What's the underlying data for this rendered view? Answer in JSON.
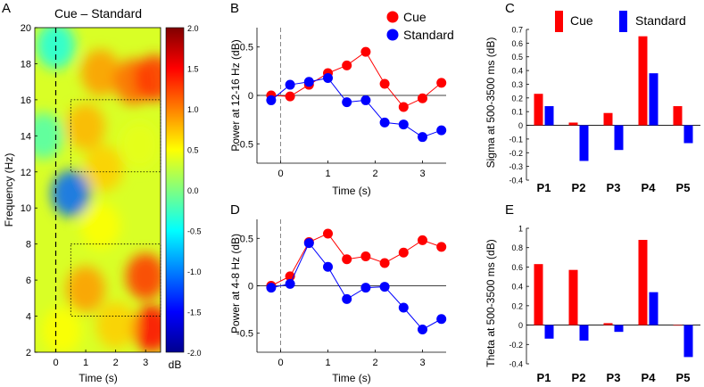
{
  "colors": {
    "cue": "#ff0000",
    "standard": "#0000ff",
    "P1": "#22bbee",
    "P2": "#1aaa8a",
    "P3": "#e06a1e",
    "P4": "#e070b8",
    "P5": "#000000"
  },
  "chart_data": [
    {
      "panel": "A",
      "type": "heatmap",
      "title": "Cue – Standard",
      "xlabel": "Time (s)",
      "ylabel": "Frequency (Hz)",
      "xlim": [
        -0.7,
        3.5
      ],
      "ylim": [
        2,
        20
      ],
      "xticks": [
        0,
        1,
        2,
        3
      ],
      "yticks": [
        2,
        4,
        6,
        8,
        10,
        12,
        14,
        16,
        18,
        20
      ],
      "colorbar": {
        "label": "dB",
        "range": [
          -2.0,
          2.0
        ],
        "ticks": [
          "2.0",
          "1.5",
          "1.0",
          "0.5",
          "0.0",
          "-0.5",
          "-1.0",
          "-1.5",
          "-2.0"
        ]
      },
      "boxes": [
        {
          "x": [
            0.5,
            3.5
          ],
          "y": [
            12,
            16
          ]
        },
        {
          "x": [
            0.5,
            3.5
          ],
          "y": [
            4,
            8
          ]
        }
      ],
      "blobs": [
        {
          "t": 1.5,
          "f": 17.5,
          "db": 0.9
        },
        {
          "t": 2.6,
          "f": 17.0,
          "db": 1.1
        },
        {
          "t": 3.3,
          "f": 17.2,
          "db": 1.3
        },
        {
          "t": 1.0,
          "f": 14.5,
          "db": 0.8
        },
        {
          "t": 1.6,
          "f": 12.2,
          "db": 0.7
        },
        {
          "t": 2.8,
          "f": 13.5,
          "db": 0.4
        },
        {
          "t": 0.5,
          "f": 10.8,
          "db": -1.1
        },
        {
          "t": 1.5,
          "f": 9.0,
          "db": 0.5
        },
        {
          "t": 3.0,
          "f": 6.2,
          "db": 1.3
        },
        {
          "t": 1.0,
          "f": 5.5,
          "db": 0.9
        },
        {
          "t": 3.2,
          "f": 3.3,
          "db": 1.5
        },
        {
          "t": 0.2,
          "f": 3.2,
          "db": 0.5
        },
        {
          "t": 2.0,
          "f": 3.5,
          "db": 0.7
        },
        {
          "t": 0.0,
          "f": 19.0,
          "db": -0.4
        },
        {
          "t": -0.4,
          "f": 14.0,
          "db": -0.2
        }
      ]
    },
    {
      "panel": "B",
      "type": "line",
      "ylabel": "Power at 12-16 Hz (dB)",
      "xlabel": "Time (s)",
      "xlim": [
        -0.5,
        3.5
      ],
      "ylim": [
        -0.7,
        0.7
      ],
      "xticks": [
        0,
        1,
        2,
        3
      ],
      "yticks": [
        0.5,
        0,
        -0.5
      ],
      "x": [
        -0.2,
        0.2,
        0.6,
        1.0,
        1.4,
        1.8,
        2.2,
        2.6,
        3.0,
        3.4
      ],
      "series": [
        {
          "name": "Cue",
          "values": [
            0.0,
            -0.01,
            0.11,
            0.23,
            0.31,
            0.45,
            0.12,
            -0.12,
            -0.03,
            0.13
          ]
        },
        {
          "name": "Standard",
          "values": [
            -0.05,
            0.11,
            0.14,
            0.18,
            -0.07,
            -0.05,
            -0.28,
            -0.3,
            -0.43,
            -0.36
          ]
        }
      ],
      "legend": [
        "Cue",
        "Standard"
      ]
    },
    {
      "panel": "D",
      "type": "line",
      "ylabel": "Power at 4-8 Hz (dB)",
      "xlabel": "Time (s)",
      "xlim": [
        -0.5,
        3.5
      ],
      "ylim": [
        -0.7,
        0.7
      ],
      "xticks": [
        0,
        1,
        2,
        3
      ],
      "yticks": [
        0.5,
        0,
        -0.5
      ],
      "x": [
        -0.2,
        0.2,
        0.6,
        1.0,
        1.4,
        1.8,
        2.2,
        2.6,
        3.0,
        3.4
      ],
      "series": [
        {
          "name": "Cue",
          "values": [
            0.0,
            0.1,
            0.46,
            0.55,
            0.28,
            0.31,
            0.24,
            0.35,
            0.48,
            0.41
          ]
        },
        {
          "name": "Standard",
          "values": [
            -0.02,
            0.02,
            0.45,
            0.2,
            -0.14,
            -0.02,
            -0.01,
            -0.23,
            -0.46,
            -0.35
          ]
        }
      ]
    },
    {
      "panel": "C",
      "type": "bar",
      "ylabel": "Sigma at 500-3500 ms (dB)",
      "categories": [
        "P1",
        "P2",
        "P3",
        "P4",
        "P5"
      ],
      "ylim": [
        -0.4,
        0.7
      ],
      "yticks": [
        "0.7",
        "0.6",
        "0.5",
        "0.4",
        "0.3",
        "0.2",
        "0.1",
        "0",
        "-0.1",
        "-0.2",
        "-0.3",
        "-0.4"
      ],
      "series": [
        {
          "name": "Cue",
          "values": [
            0.23,
            0.02,
            0.09,
            0.65,
            0.14
          ]
        },
        {
          "name": "Standard",
          "values": [
            0.14,
            -0.26,
            -0.18,
            0.38,
            -0.13
          ]
        }
      ],
      "legend": [
        "Cue",
        "Standard"
      ]
    },
    {
      "panel": "E",
      "type": "bar",
      "ylabel": "Theta at 500-3500 ms (dB)",
      "categories": [
        "P1",
        "P2",
        "P3",
        "P4",
        "P5"
      ],
      "ylim": [
        -0.4,
        1.0
      ],
      "yticks": [
        "1",
        "0.8",
        "0.6",
        "0.4",
        "0.2",
        "0",
        "-0.2",
        "-0.4"
      ],
      "series": [
        {
          "name": "Cue",
          "values": [
            0.63,
            0.57,
            0.02,
            0.88,
            0.0
          ]
        },
        {
          "name": "Standard",
          "values": [
            -0.14,
            -0.16,
            -0.07,
            0.34,
            -0.33
          ]
        }
      ]
    }
  ]
}
